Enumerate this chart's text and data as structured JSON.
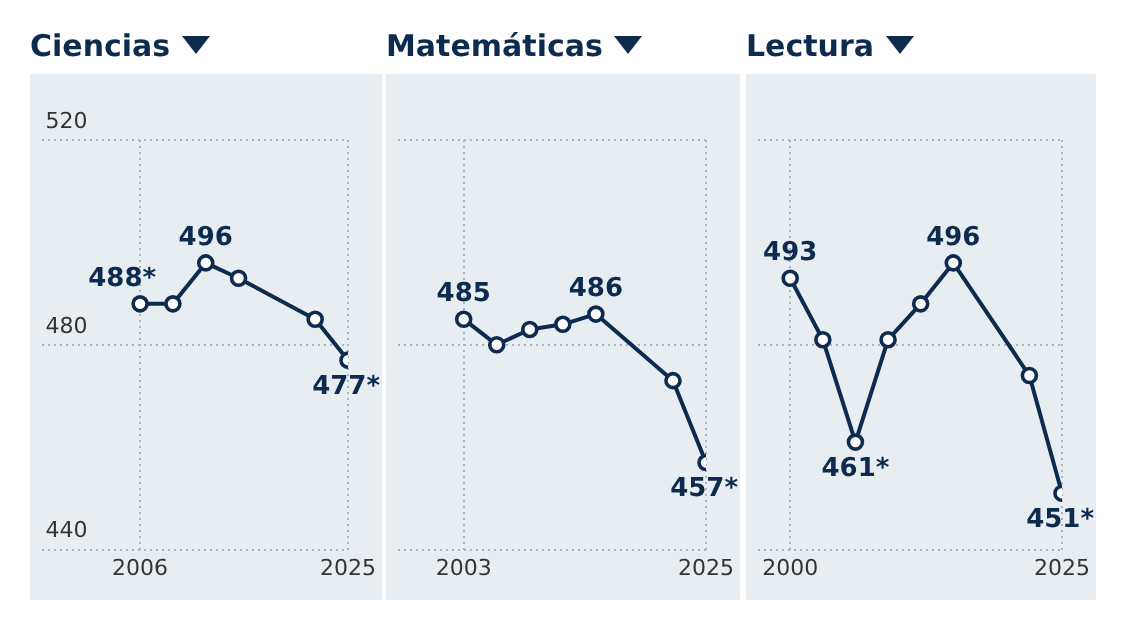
{
  "chart_data": [
    {
      "type": "line",
      "title": "Ciencias",
      "x": [
        2006,
        2009,
        2012,
        2015,
        2022,
        2025
      ],
      "xlim": [
        1997,
        2025
      ],
      "xticks": [
        2006,
        2025
      ],
      "ylim": [
        440,
        520
      ],
      "yticks": [
        440,
        480,
        520
      ],
      "grid": true,
      "marker": "circle",
      "series": [
        {
          "color": "#0d2b4e",
          "values": [
            488,
            488,
            496,
            493,
            485,
            477
          ],
          "value_labels": [
            "488*",
            null,
            "496",
            null,
            null,
            "477*"
          ]
        }
      ]
    },
    {
      "type": "line",
      "title": "Matemáticas",
      "x": [
        2003,
        2006,
        2009,
        2012,
        2015,
        2022,
        2025
      ],
      "xlim": [
        1997,
        2025
      ],
      "xticks": [
        2003,
        2025
      ],
      "ylim": [
        440,
        520
      ],
      "yticks": [
        440,
        480,
        520
      ],
      "tick_labels": "x",
      "grid": true,
      "marker": "circle",
      "series": [
        {
          "color": "#0d2b4e",
          "values": [
            485,
            480,
            483,
            484,
            486,
            473,
            457
          ],
          "value_labels": [
            "485",
            null,
            null,
            null,
            "486",
            null,
            "457*"
          ]
        }
      ]
    },
    {
      "type": "line",
      "title": "Lectura",
      "x": [
        2000,
        2003,
        2006,
        2009,
        2012,
        2015,
        2022,
        2025
      ],
      "xlim": [
        1997,
        2025
      ],
      "xticks": [
        2000,
        2025
      ],
      "ylim": [
        440,
        520
      ],
      "yticks": [
        440,
        480,
        520
      ],
      "tick_labels": "x",
      "grid": true,
      "marker": "circle",
      "series": [
        {
          "color": "#0d2b4e",
          "values": [
            493,
            481,
            461,
            481,
            488,
            496,
            474,
            451
          ],
          "value_labels": [
            "493",
            null,
            "461*",
            null,
            null,
            "496",
            null,
            "451*"
          ]
        }
      ]
    }
  ]
}
